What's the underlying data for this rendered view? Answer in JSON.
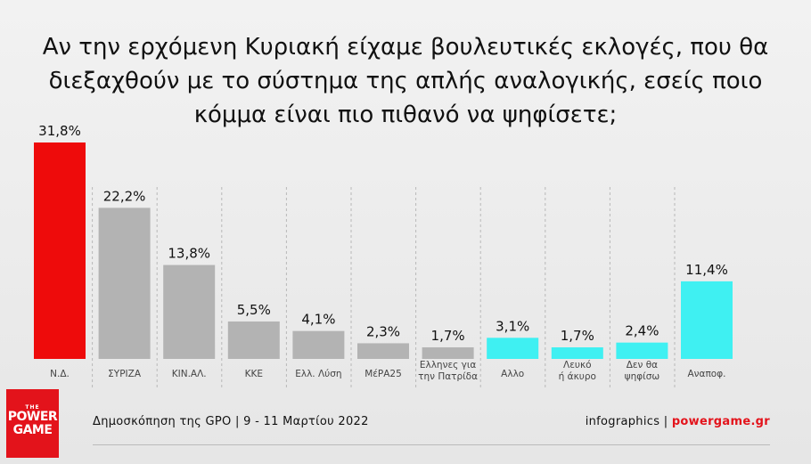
{
  "title": {
    "line1": "Αν την ερχόμενη Κυριακή είχαμε βουλευτικές εκλογές, που θα",
    "line2": "διεξαχθούν με το σύστημα της απλής αναλογικής, εσείς ποιο",
    "line3": "κόμμα είναι πιο πιθανό να ψηφίσετε;"
  },
  "logo": {
    "the": "THE",
    "line1": "POWER",
    "line2": "GAME"
  },
  "footer": {
    "source": "Δημοσκόπηση της GPO | 9 - 11 Μαρτίου 2022",
    "credit": "infographics | ",
    "site": "powergame.gr"
  },
  "colors": {
    "red": "#ee0b0b",
    "gray": "#b3b3b3",
    "cyan": "#3ff0f2",
    "accent": "#e3131b"
  },
  "chart_data": {
    "type": "bar",
    "categories": [
      [
        "Ν.Δ."
      ],
      [
        "ΣΥΡΙΖΑ"
      ],
      [
        "ΚΙΝ.ΑΛ."
      ],
      [
        "ΚΚΕ"
      ],
      [
        "Ελλ. Λύση"
      ],
      [
        "ΜέΡΑ25"
      ],
      [
        "Ελληνες για",
        "την Πατρίδα"
      ],
      [
        "Αλλο"
      ],
      [
        "Λευκό",
        "ή άκυρο"
      ],
      [
        "Δεν θα",
        "ψηφίσω"
      ],
      [
        "Αναποφ."
      ]
    ],
    "values": [
      31.8,
      22.2,
      13.8,
      5.5,
      4.1,
      2.3,
      1.7,
      3.1,
      1.7,
      2.4,
      11.4
    ],
    "value_labels": [
      "31,8%",
      "22,2%",
      "13,8%",
      "5,5%",
      "4,1%",
      "2,3%",
      "1,7%",
      "3,1%",
      "1,7%",
      "2,4%",
      "11,4%"
    ],
    "bar_colors": [
      "red",
      "gray",
      "gray",
      "gray",
      "gray",
      "gray",
      "gray",
      "cyan",
      "cyan",
      "cyan",
      "cyan"
    ],
    "ylim": [
      0,
      31.8
    ],
    "grid": false
  }
}
